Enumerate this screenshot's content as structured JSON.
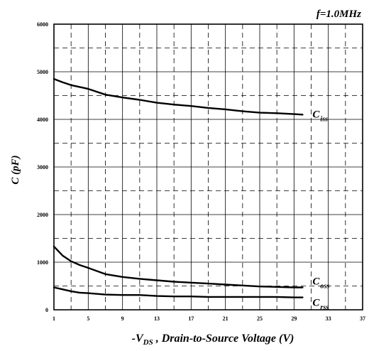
{
  "chart_data": {
    "type": "line",
    "annotation": "f=1.0MHz",
    "xlabel_prefix": "-V",
    "xlabel_sub": "DS",
    "xlabel_rest": " , Drain-to-Source Voltage (V)",
    "ylabel": "C (pF)",
    "xlim": [
      1,
      37
    ],
    "ylim": [
      0,
      6000
    ],
    "xticks": [
      "1",
      "5",
      "9",
      "13",
      "17",
      "21",
      "25",
      "29",
      "33",
      "37"
    ],
    "yticks": [
      "0",
      "1000",
      "2000",
      "3000",
      "4000",
      "5000",
      "6000"
    ],
    "grid": true,
    "series": [
      {
        "name_main": "C",
        "name_sub": "iss",
        "x": [
          1,
          2,
          3,
          4,
          5,
          7,
          9,
          11,
          13,
          15,
          17,
          19,
          21,
          23,
          25,
          27,
          29,
          30
        ],
        "y": [
          4850,
          4780,
          4720,
          4680,
          4640,
          4520,
          4460,
          4410,
          4350,
          4310,
          4280,
          4240,
          4210,
          4170,
          4140,
          4130,
          4110,
          4100
        ]
      },
      {
        "name_main": "C",
        "name_sub": "oss",
        "x": [
          1,
          2,
          3,
          4,
          5,
          7,
          9,
          11,
          13,
          15,
          17,
          19,
          21,
          23,
          25,
          27,
          29,
          30
        ],
        "y": [
          1330,
          1140,
          1020,
          940,
          880,
          750,
          690,
          650,
          620,
          590,
          570,
          550,
          530,
          510,
          490,
          480,
          470,
          470
        ]
      },
      {
        "name_main": "C",
        "name_sub": "rss",
        "x": [
          1,
          2,
          3,
          4,
          5,
          7,
          9,
          11,
          13,
          15,
          17,
          19,
          21,
          23,
          25,
          27,
          29,
          30
        ],
        "y": [
          470,
          430,
          390,
          360,
          350,
          320,
          310,
          310,
          290,
          280,
          280,
          270,
          270,
          270,
          270,
          270,
          260,
          260
        ]
      }
    ]
  }
}
